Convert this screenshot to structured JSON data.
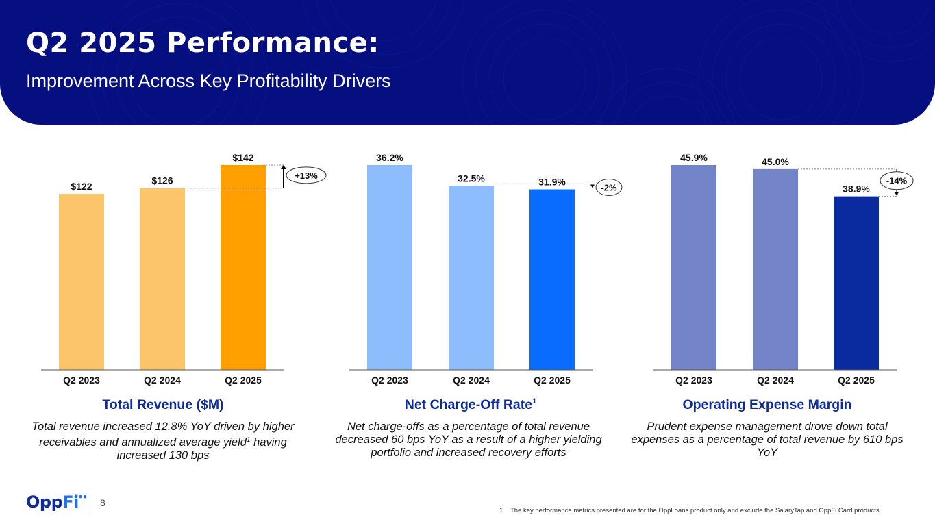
{
  "header": {
    "title": "Q2 2025 Performance:",
    "subtitle": "Improvement Across Key Profitability Drivers"
  },
  "colors": {
    "header_bg": "#050f80",
    "title_blue": "#0d2b9c"
  },
  "chart_data": [
    {
      "type": "bar",
      "title": "Total Revenue ($M)",
      "title_superscript": "",
      "description": "Total revenue increased 12.8% YoY driven by higher receivables and annualized average yield",
      "description_superscript": "1",
      "description_tail": "having increased 130 bps",
      "categories": [
        "Q2 2023",
        "Q2 2024",
        "Q2 2025"
      ],
      "values": [
        122,
        126,
        142
      ],
      "data_labels": [
        "$122",
        "$126",
        "$142"
      ],
      "colors": [
        "#fdc56b",
        "#fdc56b",
        "#ffa000"
      ],
      "ylim": [
        0,
        142
      ],
      "change_label": "+13%",
      "change_direction": "up",
      "change_from_index": 1,
      "change_to_index": 2,
      "xlabel": "",
      "ylabel": "",
      "grid": false
    },
    {
      "type": "bar",
      "title": "Net Charge-Off Rate",
      "title_superscript": "1",
      "description": "Net charge-offs as a percentage of total revenue decreased 60 bps YoY as a result of a higher yielding portfolio and increased recovery efforts",
      "description_superscript": "",
      "description_tail": "",
      "categories": [
        "Q2 2023",
        "Q2 2024",
        "Q2 2025"
      ],
      "values": [
        36.2,
        32.5,
        31.9
      ],
      "data_labels": [
        "36.2%",
        "32.5%",
        "31.9%"
      ],
      "colors": [
        "#8dbdfd",
        "#8dbdfd",
        "#0a6cff"
      ],
      "ylim": [
        0,
        36.2
      ],
      "change_label": "-2%",
      "change_direction": "down",
      "change_from_index": 1,
      "change_to_index": 2,
      "xlabel": "",
      "ylabel": "",
      "grid": false
    },
    {
      "type": "bar",
      "title": "Operating Expense Margin",
      "title_superscript": "",
      "description": "Prudent expense management drove down total expenses as a percentage of total revenue by 610 bps YoY",
      "description_superscript": "",
      "description_tail": "",
      "categories": [
        "Q2 2023",
        "Q2 2024",
        "Q2 2025"
      ],
      "values": [
        45.9,
        45.0,
        38.9
      ],
      "data_labels": [
        "45.9%",
        "45.0%",
        "38.9%"
      ],
      "colors": [
        "#7384c8",
        "#7384c8",
        "#0a2aa0"
      ],
      "ylim": [
        0,
        45.9
      ],
      "change_label": "-14%",
      "change_direction": "down",
      "change_from_index": 1,
      "change_to_index": 2,
      "xlabel": "",
      "ylabel": "",
      "grid": false
    }
  ],
  "footer": {
    "logo_opp": "Opp",
    "logo_fi": "Fi",
    "logo_dots": "•••",
    "page_number": "8",
    "footnote_number": "1.",
    "footnote_text": "The key performance metrics presented are for the OppLoans product only and exclude the SalaryTap and OppFi Card products."
  }
}
